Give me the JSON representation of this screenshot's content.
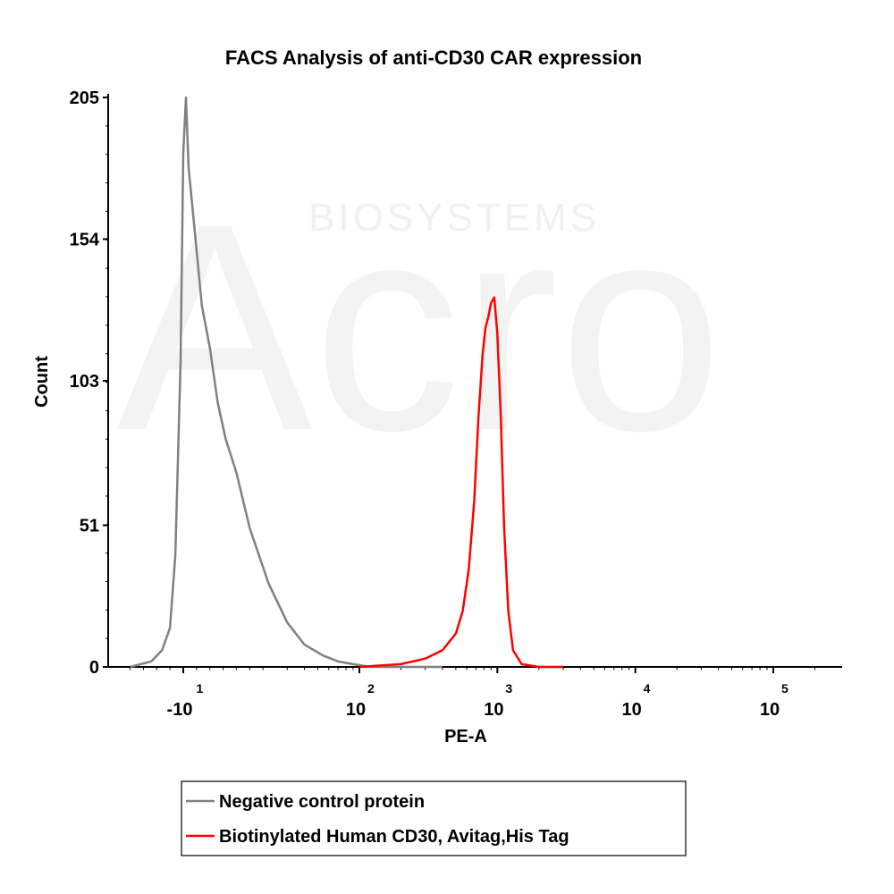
{
  "chart_data": {
    "type": "line",
    "title": "FACS Analysis of anti-CD30 CAR expression",
    "xlabel": "PE-A",
    "ylabel": "Count",
    "x_scale": "biexponential",
    "xlim": [
      -30,
      200000
    ],
    "ylim": [
      0,
      205
    ],
    "y_ticks": [
      "0",
      "51",
      "103",
      "154",
      "205"
    ],
    "x_ticks": [
      {
        "base": "-10",
        "exp": "1",
        "value": -10
      },
      {
        "base": "10",
        "exp": "2",
        "value": 100
      },
      {
        "base": "10",
        "exp": "3",
        "value": 1000
      },
      {
        "base": "10",
        "exp": "4",
        "value": 10000
      },
      {
        "base": "10",
        "exp": "5",
        "value": 100000
      }
    ],
    "legend_placement": "below",
    "series": [
      {
        "name": "Negative control protein",
        "color": "#808080",
        "x": [
          -30,
          -22,
          -18,
          -15,
          -13,
          -11,
          -10,
          -9,
          -8,
          -6,
          -3,
          0,
          3,
          6,
          10,
          15,
          22,
          30,
          40,
          55,
          70,
          90,
          120,
          160,
          250,
          400
        ],
        "y": [
          0,
          2,
          6,
          14,
          40,
          110,
          185,
          205,
          180,
          160,
          130,
          115,
          95,
          82,
          70,
          50,
          30,
          16,
          8,
          4,
          2,
          1,
          0,
          0,
          0,
          0
        ]
      },
      {
        "name": "Biotinylated Human CD30, Avitag,His Tag",
        "color": "#ff0000",
        "x": [
          100,
          200,
          300,
          400,
          500,
          560,
          620,
          680,
          730,
          780,
          820,
          860,
          900,
          950,
          1000,
          1060,
          1120,
          1200,
          1300,
          1500,
          2000,
          3000
        ],
        "y": [
          0,
          1,
          3,
          6,
          12,
          20,
          35,
          60,
          90,
          112,
          122,
          126,
          131,
          133,
          120,
          90,
          50,
          20,
          6,
          1,
          0,
          0
        ]
      }
    ]
  },
  "watermark": {
    "brand": "Acro",
    "text": "BIOSYSTEMS",
    "color": "#f0f0f0"
  },
  "style": {
    "axis_color": "#000000"
  }
}
